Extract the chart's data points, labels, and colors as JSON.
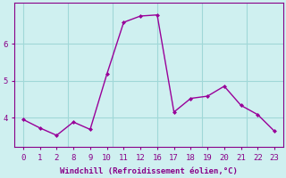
{
  "hours": [
    0,
    1,
    2,
    8,
    9,
    10,
    11,
    12,
    16,
    17,
    18,
    19,
    20,
    21,
    22,
    23
  ],
  "y": [
    3.95,
    3.72,
    3.52,
    3.88,
    3.68,
    5.18,
    6.58,
    6.75,
    6.78,
    4.15,
    4.52,
    4.58,
    4.85,
    4.33,
    4.08,
    3.63
  ],
  "line_color": "#990099",
  "marker_color": "#990099",
  "bg_color": "#cff0f0",
  "grid_color": "#a0d8d8",
  "axis_color": "#880088",
  "xlabel": "Windchill (Refroidissement éolien,°C)",
  "ytick_vals": [
    4,
    5,
    6
  ],
  "ylim": [
    3.2,
    7.1
  ],
  "tick_label_fontsize": 6.5,
  "xlabel_fontsize": 6.5
}
